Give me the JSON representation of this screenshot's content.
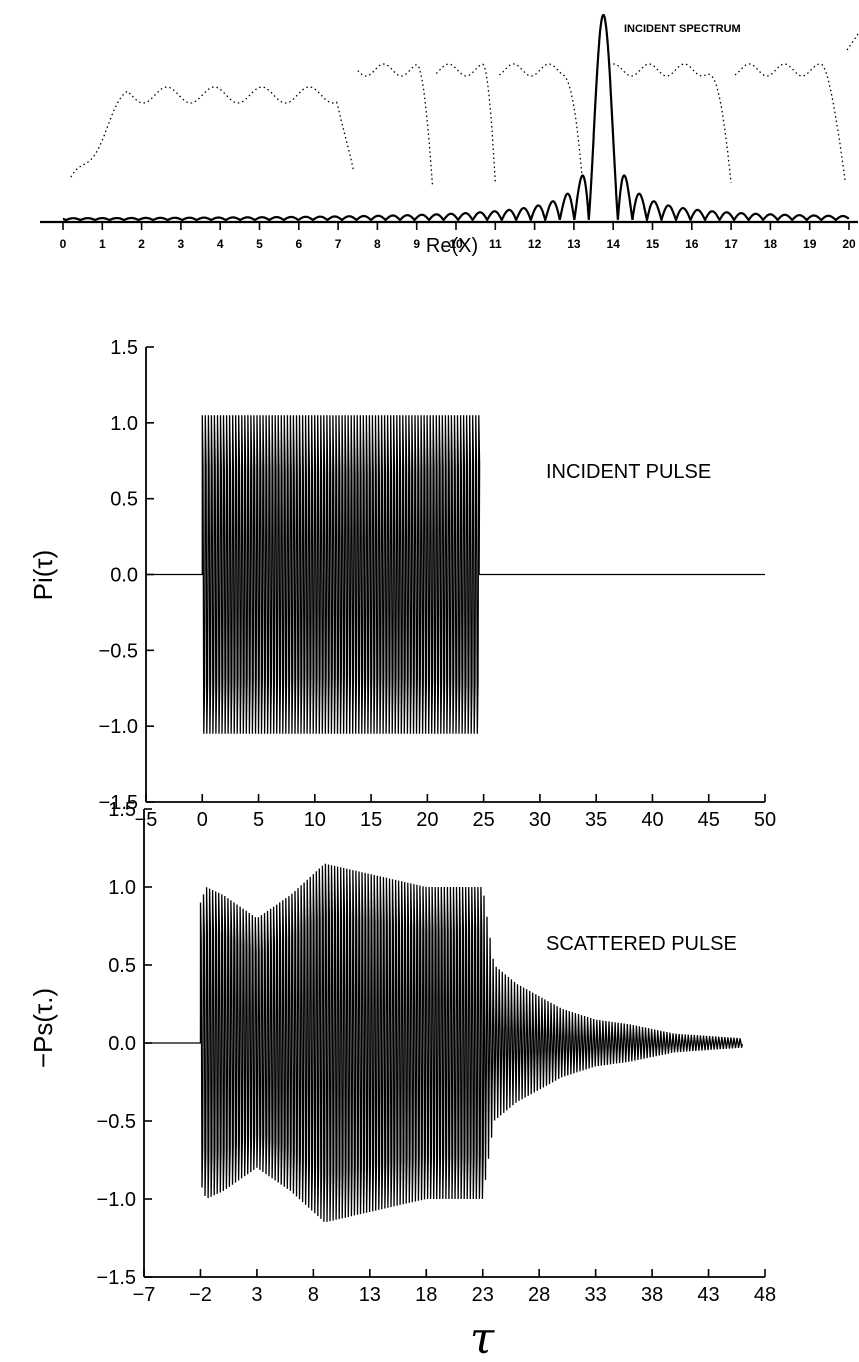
{
  "chart_data": [
    {
      "type": "line",
      "title": "",
      "xlabel": "Re(X)",
      "ylabel": "",
      "xlim": [
        0,
        20
      ],
      "x_ticks": [
        "0",
        "1",
        "2",
        "3",
        "4",
        "5",
        "6",
        "7",
        "8",
        "9",
        "10",
        "11",
        "12",
        "13",
        "14",
        "15",
        "16",
        "17",
        "18",
        "19",
        "20"
      ],
      "annotation": "INCIDENT SPECTRUM",
      "peak_x": 13.75,
      "grid": false
    },
    {
      "type": "line",
      "title": "",
      "xlabel": "",
      "ylabel": "Pi(τ)",
      "xlim": [
        -5,
        50
      ],
      "ylim": [
        -1.5,
        1.5
      ],
      "x_ticks": [
        "−5",
        "0",
        "5",
        "10",
        "15",
        "20",
        "25",
        "30",
        "35",
        "40",
        "45",
        "50"
      ],
      "y_ticks": [
        "1.5",
        "1.0",
        "0.5",
        "0.0",
        "−0.5",
        "−1.0",
        "−1.5"
      ],
      "annotation": "INCIDENT PULSE",
      "pulse_start": 0,
      "pulse_end": 24.6,
      "amplitude": 1.05,
      "grid": false
    },
    {
      "type": "line",
      "title": "",
      "xlabel": "τ",
      "ylabel": "−Ps(τ.)",
      "xlim": [
        -7,
        48
      ],
      "ylim": [
        -1.5,
        1.5
      ],
      "x_ticks": [
        "−7",
        "−2",
        "3",
        "8",
        "13",
        "18",
        "23",
        "28",
        "33",
        "38",
        "43",
        "48"
      ],
      "y_ticks": [
        "1.5",
        "1.0",
        "0.5",
        "0.0",
        "−0.5",
        "−1.0",
        "−1.5"
      ],
      "annotation": "SCATTERED PULSE",
      "pulse_start": -2,
      "pulse_end": 23,
      "envelope_x": [
        -2,
        -1.5,
        0,
        3,
        6,
        9,
        12,
        15,
        18,
        21,
        23,
        24,
        26,
        28,
        30,
        33,
        36,
        40,
        44,
        46
      ],
      "envelope_y": [
        0.9,
        1.0,
        0.95,
        0.8,
        0.95,
        1.15,
        1.1,
        1.05,
        1.0,
        1.0,
        1.0,
        0.5,
        0.38,
        0.3,
        0.22,
        0.15,
        0.12,
        0.06,
        0.04,
        0.03
      ],
      "grid": false
    }
  ]
}
